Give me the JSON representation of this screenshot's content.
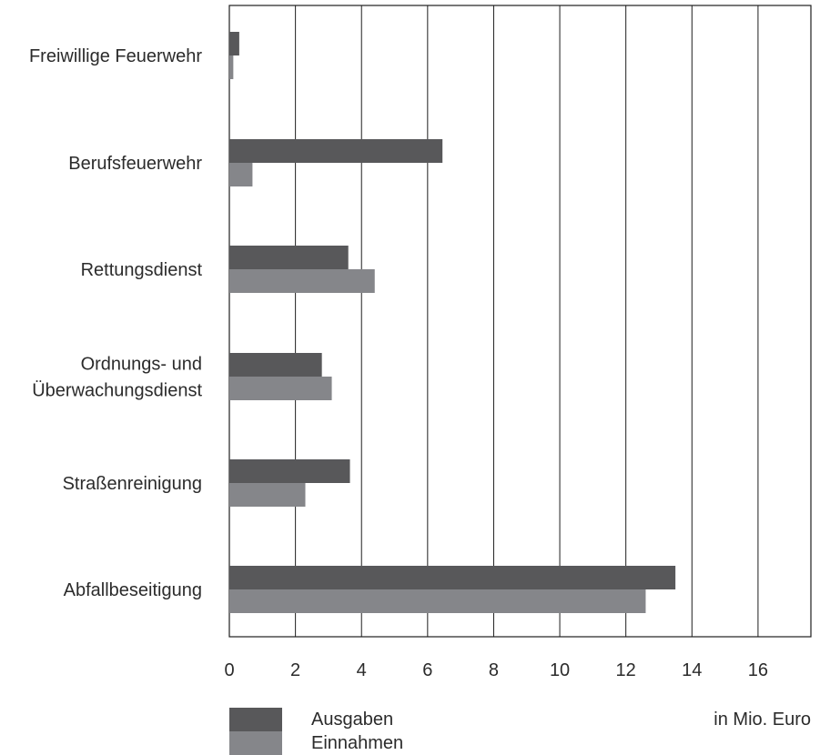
{
  "chart_data": {
    "type": "bar",
    "orientation": "horizontal",
    "categories": [
      "Freiwillige Feuerwehr",
      "Berufsfeuerwehr",
      "Rettungsdienst",
      "Ordnungs- und Überwachungsdienst",
      "Straßenreinigung",
      "Abfallbeseitigung"
    ],
    "category_lines": [
      [
        "Freiwillige Feuerwehr"
      ],
      [
        "Berufsfeuerwehr"
      ],
      [
        "Rettungsdienst"
      ],
      [
        "Ordnungs- und",
        "Überwachungsdienst"
      ],
      [
        "Straßenreinigung"
      ],
      [
        "Abfallbeseitigung"
      ]
    ],
    "series": [
      {
        "name": "Ausgaben",
        "color": "#58585a",
        "values": [
          0.3,
          6.45,
          3.6,
          2.8,
          3.65,
          13.5
        ]
      },
      {
        "name": "Einnahmen",
        "color": "#85868a",
        "values": [
          0.12,
          0.7,
          4.4,
          3.1,
          2.3,
          12.6
        ]
      }
    ],
    "xticks": [
      0,
      2,
      4,
      6,
      8,
      10,
      12,
      14,
      16
    ],
    "xlim": [
      0,
      17.6
    ],
    "unit_label": "in Mio. Euro",
    "grid": "vertical",
    "legend": "bottom-left"
  }
}
